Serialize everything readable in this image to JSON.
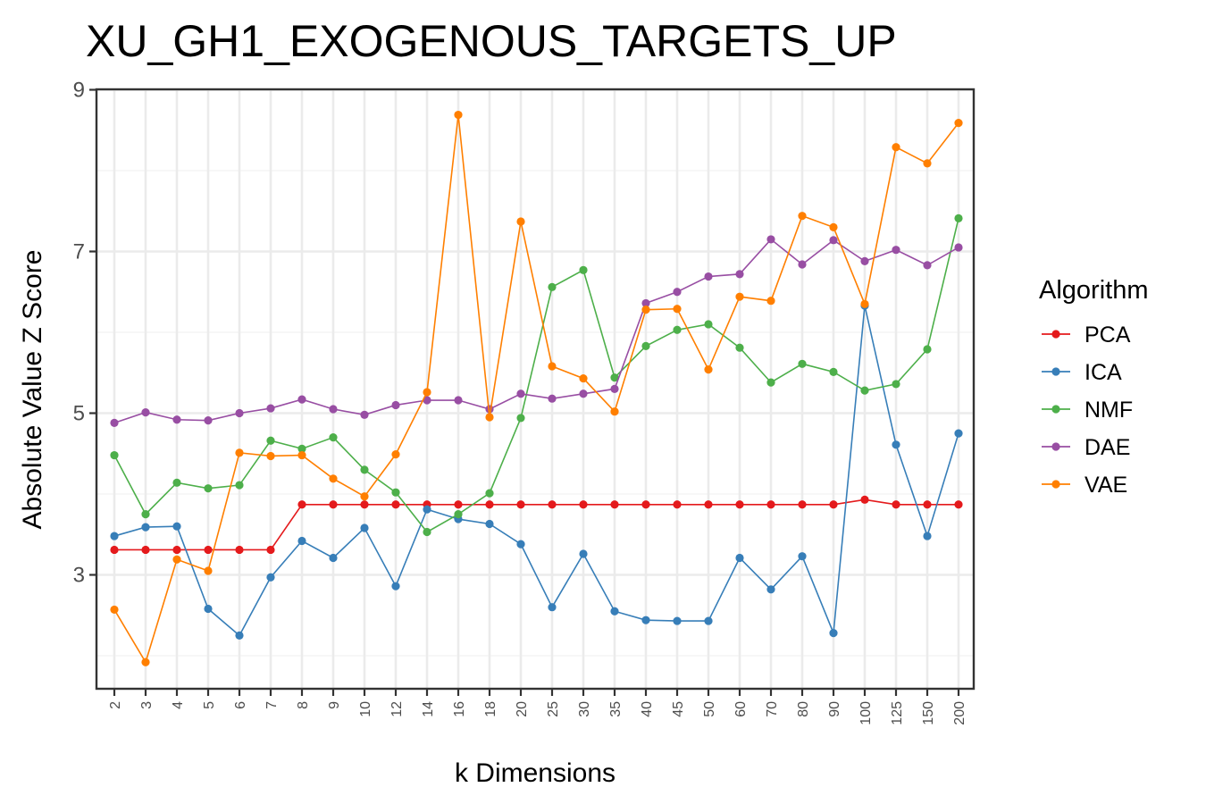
{
  "chart_data": {
    "type": "line",
    "title": "XU_GH1_EXOGENOUS_TARGETS_UP",
    "xlabel": "k Dimensions",
    "ylabel": "Absolute Value Z Score",
    "categories": [
      "2",
      "3",
      "4",
      "5",
      "6",
      "7",
      "8",
      "9",
      "10",
      "12",
      "14",
      "16",
      "18",
      "20",
      "25",
      "30",
      "35",
      "40",
      "45",
      "50",
      "60",
      "70",
      "80",
      "90",
      "100",
      "125",
      "150",
      "200"
    ],
    "ylim": [
      1.4,
      9.0
    ],
    "yticks": [
      3,
      5,
      7,
      9
    ],
    "grid": true,
    "legend": {
      "title": "Algorithm",
      "position": "right"
    },
    "series": [
      {
        "name": "PCA",
        "color": "#e41a1c",
        "values": [
          3.31,
          3.31,
          3.31,
          3.31,
          3.31,
          3.31,
          3.87,
          3.87,
          3.87,
          3.87,
          3.87,
          3.87,
          3.87,
          3.87,
          3.87,
          3.87,
          3.87,
          3.87,
          3.87,
          3.87,
          3.87,
          3.87,
          3.87,
          3.87,
          3.93,
          3.87,
          3.87,
          3.87
        ]
      },
      {
        "name": "ICA",
        "color": "#377eb8",
        "values": [
          3.48,
          3.59,
          3.6,
          2.58,
          2.25,
          2.97,
          3.42,
          3.21,
          3.58,
          2.86,
          3.81,
          3.69,
          3.63,
          3.38,
          2.6,
          3.26,
          2.55,
          2.44,
          2.43,
          2.43,
          3.21,
          2.82,
          3.23,
          2.28,
          6.33,
          4.61,
          3.48,
          4.75
        ]
      },
      {
        "name": "NMF",
        "color": "#4daf4a",
        "values": [
          4.48,
          3.75,
          4.14,
          4.07,
          4.11,
          4.66,
          4.56,
          4.7,
          4.3,
          4.02,
          3.53,
          3.75,
          4.01,
          4.94,
          6.56,
          6.77,
          5.44,
          5.83,
          6.03,
          6.1,
          5.81,
          5.38,
          5.61,
          5.51,
          5.28,
          5.36,
          5.79,
          7.41
        ]
      },
      {
        "name": "DAE",
        "color": "#984ea3",
        "values": [
          4.88,
          5.01,
          4.92,
          4.91,
          5.0,
          5.06,
          5.17,
          5.05,
          4.98,
          5.1,
          5.16,
          5.16,
          5.05,
          5.24,
          5.18,
          5.24,
          5.3,
          6.36,
          6.5,
          6.69,
          6.72,
          7.15,
          6.84,
          7.14,
          6.88,
          7.02,
          6.83,
          7.05
        ]
      },
      {
        "name": "VAE",
        "color": "#ff7f00",
        "values": [
          2.57,
          1.92,
          3.19,
          3.05,
          4.51,
          4.47,
          4.48,
          4.19,
          3.97,
          4.49,
          5.26,
          8.69,
          4.95,
          7.37,
          5.58,
          5.43,
          5.02,
          6.28,
          6.29,
          5.54,
          6.44,
          6.39,
          7.44,
          7.3,
          6.35,
          8.29,
          8.09,
          8.59
        ]
      }
    ]
  }
}
